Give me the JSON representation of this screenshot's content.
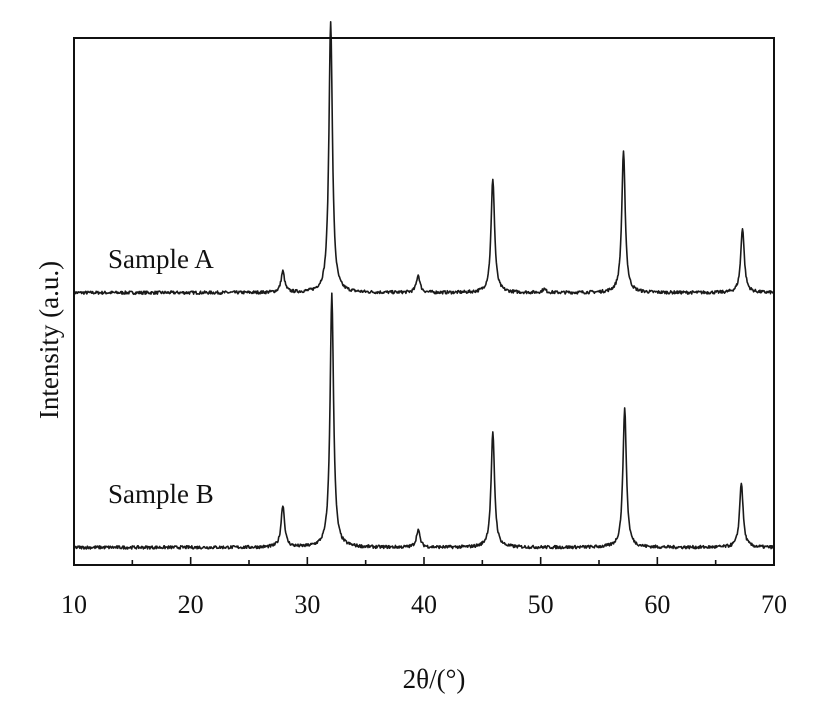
{
  "chart_data": {
    "type": "line",
    "xlabel": "2θ/(°)",
    "ylabel": "Intensity (a.u.)",
    "xlim": [
      10,
      70
    ],
    "x_ticks": [
      10,
      20,
      30,
      40,
      50,
      60,
      70
    ],
    "x_minor_ticks": [
      15,
      25,
      35,
      45,
      55,
      65
    ],
    "ylim": [
      0,
      3.0
    ],
    "y_ticks_shown": false,
    "grid": false,
    "legend": "none",
    "series": [
      {
        "name": "Sample A",
        "baseline": 1.55,
        "peaks": [
          {
            "x": 27.9,
            "height": 0.12
          },
          {
            "x": 32.0,
            "height": 1.55
          },
          {
            "x": 39.5,
            "height": 0.1
          },
          {
            "x": 45.9,
            "height": 0.65
          },
          {
            "x": 50.3,
            "height": 0.02
          },
          {
            "x": 57.1,
            "height": 0.8
          },
          {
            "x": 67.3,
            "height": 0.37
          }
        ]
      },
      {
        "name": "Sample B",
        "baseline": 0.1,
        "peaks": [
          {
            "x": 27.9,
            "height": 0.24
          },
          {
            "x": 32.1,
            "height": 1.44
          },
          {
            "x": 39.5,
            "height": 0.1
          },
          {
            "x": 45.9,
            "height": 0.65
          },
          {
            "x": 57.2,
            "height": 0.79
          },
          {
            "x": 67.2,
            "height": 0.37
          }
        ]
      }
    ]
  }
}
